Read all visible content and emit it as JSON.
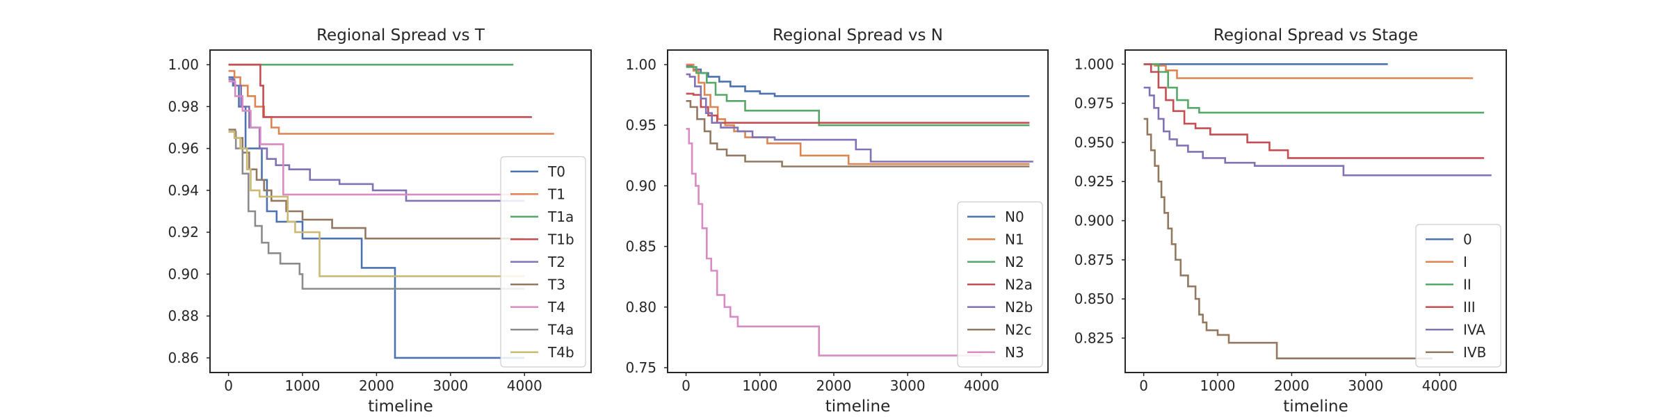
{
  "chart_data": [
    {
      "type": "line",
      "step": true,
      "title": "Regional Spread vs T",
      "xlabel": "timeline",
      "ylabel": "",
      "xlim": [
        -250,
        4900
      ],
      "ylim": [
        0.853,
        1.007
      ],
      "xticks": [
        0,
        1000,
        2000,
        3000,
        4000
      ],
      "xtick_labels": [
        "0",
        "1000",
        "2000",
        "3000",
        "4000"
      ],
      "yticks": [
        0.86,
        0.88,
        0.9,
        0.92,
        0.94,
        0.96,
        0.98,
        1.0
      ],
      "ytick_labels": [
        "0.86",
        "0.88",
        "0.90",
        "0.92",
        "0.94",
        "0.96",
        "0.98",
        "1.00"
      ],
      "legend_loc": "lower right",
      "series": [
        {
          "name": "T0",
          "color": "#4c72b0",
          "points": [
            [
              0,
              0.994
            ],
            [
              60,
              0.99
            ],
            [
              140,
              0.98
            ],
            [
              230,
              0.96
            ],
            [
              450,
              0.945
            ],
            [
              520,
              0.93
            ],
            [
              650,
              0.925
            ],
            [
              1000,
              0.917
            ],
            [
              1800,
              0.903
            ],
            [
              2250,
              0.86
            ],
            [
              4000,
              0.86
            ]
          ]
        },
        {
          "name": "T1",
          "color": "#dd8452",
          "points": [
            [
              0,
              0.997
            ],
            [
              80,
              0.994
            ],
            [
              160,
              0.99
            ],
            [
              260,
              0.985
            ],
            [
              360,
              0.98
            ],
            [
              480,
              0.975
            ],
            [
              580,
              0.97
            ],
            [
              680,
              0.967
            ],
            [
              4400,
              0.967
            ]
          ]
        },
        {
          "name": "T1a",
          "color": "#55a868",
          "points": [
            [
              0,
              1.0
            ],
            [
              3850,
              1.0
            ]
          ]
        },
        {
          "name": "T1b",
          "color": "#c44e52",
          "points": [
            [
              0,
              1.0
            ],
            [
              400,
              1.0
            ],
            [
              430,
              0.99
            ],
            [
              470,
              0.975
            ],
            [
              4100,
              0.975
            ]
          ]
        },
        {
          "name": "T2",
          "color": "#8172b3",
          "points": [
            [
              0,
              0.993
            ],
            [
              80,
              0.99
            ],
            [
              170,
              0.98
            ],
            [
              280,
              0.97
            ],
            [
              420,
              0.96
            ],
            [
              520,
              0.955
            ],
            [
              640,
              0.952
            ],
            [
              820,
              0.95
            ],
            [
              1100,
              0.945
            ],
            [
              1500,
              0.943
            ],
            [
              1950,
              0.94
            ],
            [
              2400,
              0.935
            ],
            [
              4000,
              0.935
            ]
          ]
        },
        {
          "name": "T3",
          "color": "#937860",
          "points": [
            [
              0,
              0.969
            ],
            [
              90,
              0.965
            ],
            [
              190,
              0.958
            ],
            [
              280,
              0.95
            ],
            [
              380,
              0.945
            ],
            [
              480,
              0.94
            ],
            [
              580,
              0.935
            ],
            [
              780,
              0.93
            ],
            [
              1000,
              0.926
            ],
            [
              1400,
              0.922
            ],
            [
              1850,
              0.917
            ],
            [
              4000,
              0.917
            ]
          ]
        },
        {
          "name": "T4",
          "color": "#da8bc3",
          "points": [
            [
              0,
              0.992
            ],
            [
              90,
              0.985
            ],
            [
              190,
              0.978
            ],
            [
              300,
              0.97
            ],
            [
              430,
              0.962
            ],
            [
              740,
              0.938
            ],
            [
              4000,
              0.938
            ]
          ]
        },
        {
          "name": "T4a",
          "color": "#8c8c8c",
          "points": [
            [
              0,
              0.968
            ],
            [
              100,
              0.96
            ],
            [
              190,
              0.948
            ],
            [
              270,
              0.93
            ],
            [
              360,
              0.923
            ],
            [
              450,
              0.915
            ],
            [
              540,
              0.91
            ],
            [
              700,
              0.905
            ],
            [
              960,
              0.9
            ],
            [
              1000,
              0.893
            ],
            [
              4000,
              0.893
            ]
          ]
        },
        {
          "name": "T4b",
          "color": "#ccb974",
          "points": [
            [
              0,
              0.968
            ],
            [
              80,
              0.965
            ],
            [
              160,
              0.96
            ],
            [
              250,
              0.95
            ],
            [
              300,
              0.94
            ],
            [
              420,
              0.937
            ],
            [
              650,
              0.937
            ],
            [
              800,
              0.925
            ],
            [
              900,
              0.92
            ],
            [
              1200,
              0.92
            ],
            [
              1230,
              0.899
            ],
            [
              4000,
              0.899
            ]
          ]
        }
      ]
    },
    {
      "type": "line",
      "step": true,
      "title": "Regional Spread vs N",
      "xlabel": "timeline",
      "ylabel": "",
      "xlim": [
        -250,
        4900
      ],
      "ylim": [
        0.746,
        1.012
      ],
      "xticks": [
        0,
        1000,
        2000,
        3000,
        4000
      ],
      "xtick_labels": [
        "0",
        "1000",
        "2000",
        "3000",
        "4000"
      ],
      "yticks": [
        0.75,
        0.8,
        0.85,
        0.9,
        0.95,
        1.0
      ],
      "ytick_labels": [
        "0.75",
        "0.80",
        "0.85",
        "0.90",
        "0.95",
        "1.00"
      ],
      "legend_loc": "lower right",
      "series": [
        {
          "name": "N0",
          "color": "#4c72b0",
          "points": [
            [
              0,
              0.999
            ],
            [
              100,
              0.996
            ],
            [
              200,
              0.993
            ],
            [
              300,
              0.99
            ],
            [
              450,
              0.986
            ],
            [
              600,
              0.982
            ],
            [
              800,
              0.978
            ],
            [
              1000,
              0.976
            ],
            [
              1200,
              0.974
            ],
            [
              4650,
              0.974
            ]
          ]
        },
        {
          "name": "N1",
          "color": "#dd8452",
          "points": [
            [
              0,
              1.0
            ],
            [
              100,
              0.995
            ],
            [
              170,
              0.985
            ],
            [
              250,
              0.975
            ],
            [
              330,
              0.965
            ],
            [
              430,
              0.955
            ],
            [
              530,
              0.95
            ],
            [
              650,
              0.945
            ],
            [
              800,
              0.94
            ],
            [
              1100,
              0.935
            ],
            [
              1550,
              0.925
            ],
            [
              2200,
              0.918
            ],
            [
              4650,
              0.918
            ]
          ]
        },
        {
          "name": "N2",
          "color": "#55a868",
          "points": [
            [
              0,
              0.998
            ],
            [
              140,
              0.993
            ],
            [
              280,
              0.985
            ],
            [
              400,
              0.975
            ],
            [
              550,
              0.97
            ],
            [
              800,
              0.962
            ],
            [
              1800,
              0.95
            ],
            [
              4650,
              0.95
            ]
          ]
        },
        {
          "name": "N2a",
          "color": "#c44e52",
          "points": [
            [
              0,
              0.976
            ],
            [
              100,
              0.975
            ],
            [
              200,
              0.965
            ],
            [
              300,
              0.958
            ],
            [
              420,
              0.952
            ],
            [
              4650,
              0.952
            ]
          ]
        },
        {
          "name": "N2b",
          "color": "#8172b3",
          "points": [
            [
              0,
              0.992
            ],
            [
              50,
              0.99
            ],
            [
              120,
              0.982
            ],
            [
              200,
              0.972
            ],
            [
              270,
              0.96
            ],
            [
              350,
              0.952
            ],
            [
              470,
              0.948
            ],
            [
              700,
              0.945
            ],
            [
              900,
              0.94
            ],
            [
              1200,
              0.938
            ],
            [
              2300,
              0.93
            ],
            [
              2500,
              0.92
            ],
            [
              4700,
              0.92
            ]
          ]
        },
        {
          "name": "N2c",
          "color": "#937860",
          "points": [
            [
              0,
              0.97
            ],
            [
              60,
              0.965
            ],
            [
              150,
              0.955
            ],
            [
              250,
              0.945
            ],
            [
              330,
              0.935
            ],
            [
              420,
              0.93
            ],
            [
              550,
              0.925
            ],
            [
              800,
              0.92
            ],
            [
              1300,
              0.916
            ],
            [
              4650,
              0.916
            ]
          ]
        },
        {
          "name": "N3",
          "color": "#da8bc3",
          "points": [
            [
              0,
              0.947
            ],
            [
              40,
              0.935
            ],
            [
              80,
              0.91
            ],
            [
              130,
              0.9
            ],
            [
              170,
              0.885
            ],
            [
              220,
              0.865
            ],
            [
              280,
              0.84
            ],
            [
              340,
              0.83
            ],
            [
              420,
              0.81
            ],
            [
              520,
              0.8
            ],
            [
              600,
              0.792
            ],
            [
              700,
              0.784
            ],
            [
              1800,
              0.76
            ],
            [
              4000,
              0.76
            ]
          ]
        }
      ]
    },
    {
      "type": "line",
      "step": true,
      "title": "Regional Spread vs Stage",
      "xlabel": "timeline",
      "ylabel": "",
      "xlim": [
        -250,
        4900
      ],
      "ylim": [
        0.803,
        1.009
      ],
      "xticks": [
        0,
        1000,
        2000,
        3000,
        4000
      ],
      "xtick_labels": [
        "0",
        "1000",
        "2000",
        "3000",
        "4000"
      ],
      "yticks": [
        0.825,
        0.85,
        0.875,
        0.9,
        0.925,
        0.95,
        0.975,
        1.0
      ],
      "ytick_labels": [
        "0.825",
        "0.850",
        "0.875",
        "0.900",
        "0.925",
        "0.950",
        "0.975",
        "1.000"
      ],
      "legend_loc": "lower right",
      "series": [
        {
          "name": "0",
          "color": "#4c72b0",
          "points": [
            [
              0,
              1.0
            ],
            [
              3300,
              1.0
            ]
          ]
        },
        {
          "name": "I",
          "color": "#dd8452",
          "points": [
            [
              0,
              1.0
            ],
            [
              150,
              0.999
            ],
            [
              300,
              0.996
            ],
            [
              450,
              0.991
            ],
            [
              4450,
              0.991
            ]
          ]
        },
        {
          "name": "II",
          "color": "#55a868",
          "points": [
            [
              0,
              1.0
            ],
            [
              200,
              0.995
            ],
            [
              330,
              0.985
            ],
            [
              450,
              0.977
            ],
            [
              600,
              0.972
            ],
            [
              750,
              0.969
            ],
            [
              4600,
              0.969
            ]
          ]
        },
        {
          "name": "III",
          "color": "#c44e52",
          "points": [
            [
              0,
              1.0
            ],
            [
              100,
              0.995
            ],
            [
              200,
              0.985
            ],
            [
              300,
              0.977
            ],
            [
              400,
              0.97
            ],
            [
              550,
              0.962
            ],
            [
              700,
              0.959
            ],
            [
              900,
              0.955
            ],
            [
              1400,
              0.95
            ],
            [
              1700,
              0.945
            ],
            [
              1950,
              0.94
            ],
            [
              4600,
              0.94
            ]
          ]
        },
        {
          "name": "IVA",
          "color": "#8172b3",
          "points": [
            [
              0,
              0.985
            ],
            [
              80,
              0.98
            ],
            [
              140,
              0.972
            ],
            [
              200,
              0.965
            ],
            [
              270,
              0.957
            ],
            [
              350,
              0.952
            ],
            [
              450,
              0.948
            ],
            [
              600,
              0.944
            ],
            [
              800,
              0.94
            ],
            [
              1100,
              0.937
            ],
            [
              1500,
              0.935
            ],
            [
              2700,
              0.929
            ],
            [
              4700,
              0.929
            ]
          ]
        },
        {
          "name": "IVB",
          "color": "#937860",
          "points": [
            [
              0,
              0.965
            ],
            [
              50,
              0.955
            ],
            [
              100,
              0.945
            ],
            [
              150,
              0.935
            ],
            [
              200,
              0.925
            ],
            [
              240,
              0.915
            ],
            [
              280,
              0.905
            ],
            [
              330,
              0.895
            ],
            [
              380,
              0.885
            ],
            [
              430,
              0.875
            ],
            [
              500,
              0.865
            ],
            [
              600,
              0.858
            ],
            [
              700,
              0.85
            ],
            [
              750,
              0.84
            ],
            [
              800,
              0.835
            ],
            [
              850,
              0.83
            ],
            [
              1000,
              0.827
            ],
            [
              1150,
              0.822
            ],
            [
              1800,
              0.812
            ],
            [
              3900,
              0.812
            ]
          ]
        }
      ]
    }
  ]
}
